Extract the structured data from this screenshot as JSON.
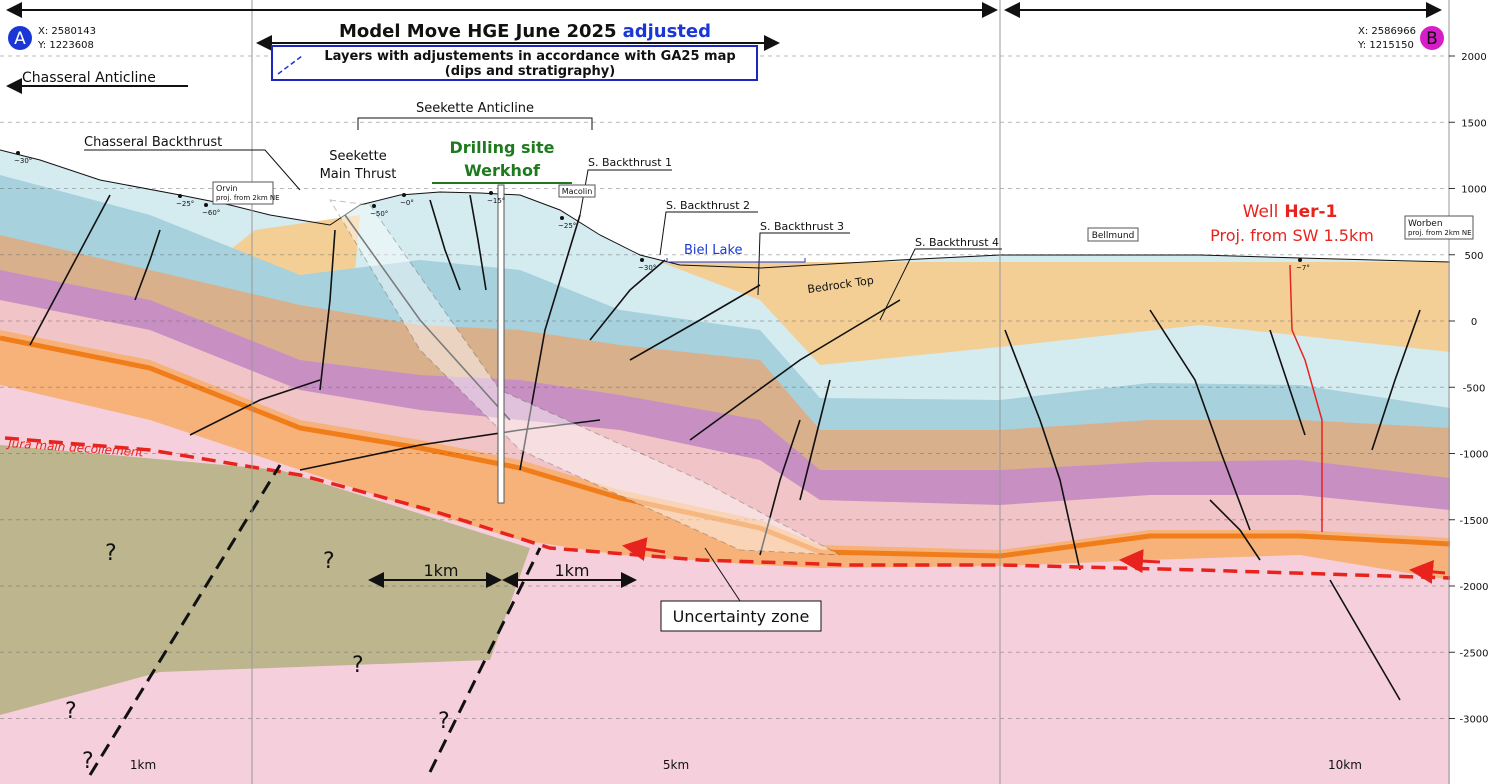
{
  "header": {
    "title": "Model Move HGE June 2025",
    "title_highlight": "adjusted",
    "legend_lines": [
      "Layers with adjustements in accordance with GA25 map",
      "(dips and stratigraphy)"
    ]
  },
  "endpoints": [
    {
      "label": "A",
      "x": "X: 2580143",
      "y": "Y: 1223608"
    },
    {
      "label": "B",
      "x": "X: 2586966",
      "y": "Y: 1215150"
    }
  ],
  "labels": {
    "chasseral_anticline": "Chasseral Anticline",
    "seekette_anticline": "Seekette Anticline",
    "chasseral_backthrust": "Chasseral Backthrust",
    "seekette_main_thrust": [
      "Seekette",
      "Main Thrust"
    ],
    "drilling_site": [
      "Drilling site",
      "Werkhof"
    ],
    "backthrusts": [
      "S. Backthrust 1",
      "S. Backthrust 2",
      "S. Backthrust 3",
      "S. Backthrust 4"
    ],
    "biel_lake": "Biel Lake",
    "bedrock_top": "Bedrock Top",
    "bellmund": "Bellmund",
    "well": {
      "prefix": "Well",
      "name": "Her-1",
      "projection": "Proj. from SW 1.5km"
    },
    "worben": [
      "Worben",
      "proj. from 2km NE"
    ],
    "orvin": [
      "Orvin",
      "proj. from 2km NE"
    ],
    "macolin": "Macolin",
    "decollement": "Jura main décollement",
    "uncertainty_zone": "Uncertainty zone"
  },
  "dips": [
    "~30°",
    "~25°",
    "~60°",
    "~50°",
    "~0°",
    "~15°",
    "~25°",
    "~30°",
    "~7°"
  ],
  "question_marks": [
    "?",
    "?",
    "?",
    "?",
    "?",
    "?"
  ],
  "scale_bars": [
    "1km",
    "1km"
  ],
  "distance_labels": [
    "1km",
    "5km",
    "10km"
  ],
  "elevation_axis": {
    "ticks": [
      2000,
      1500,
      1000,
      500,
      0,
      -500,
      -1000,
      -1500,
      -2000,
      -2500,
      -3000
    ]
  }
}
